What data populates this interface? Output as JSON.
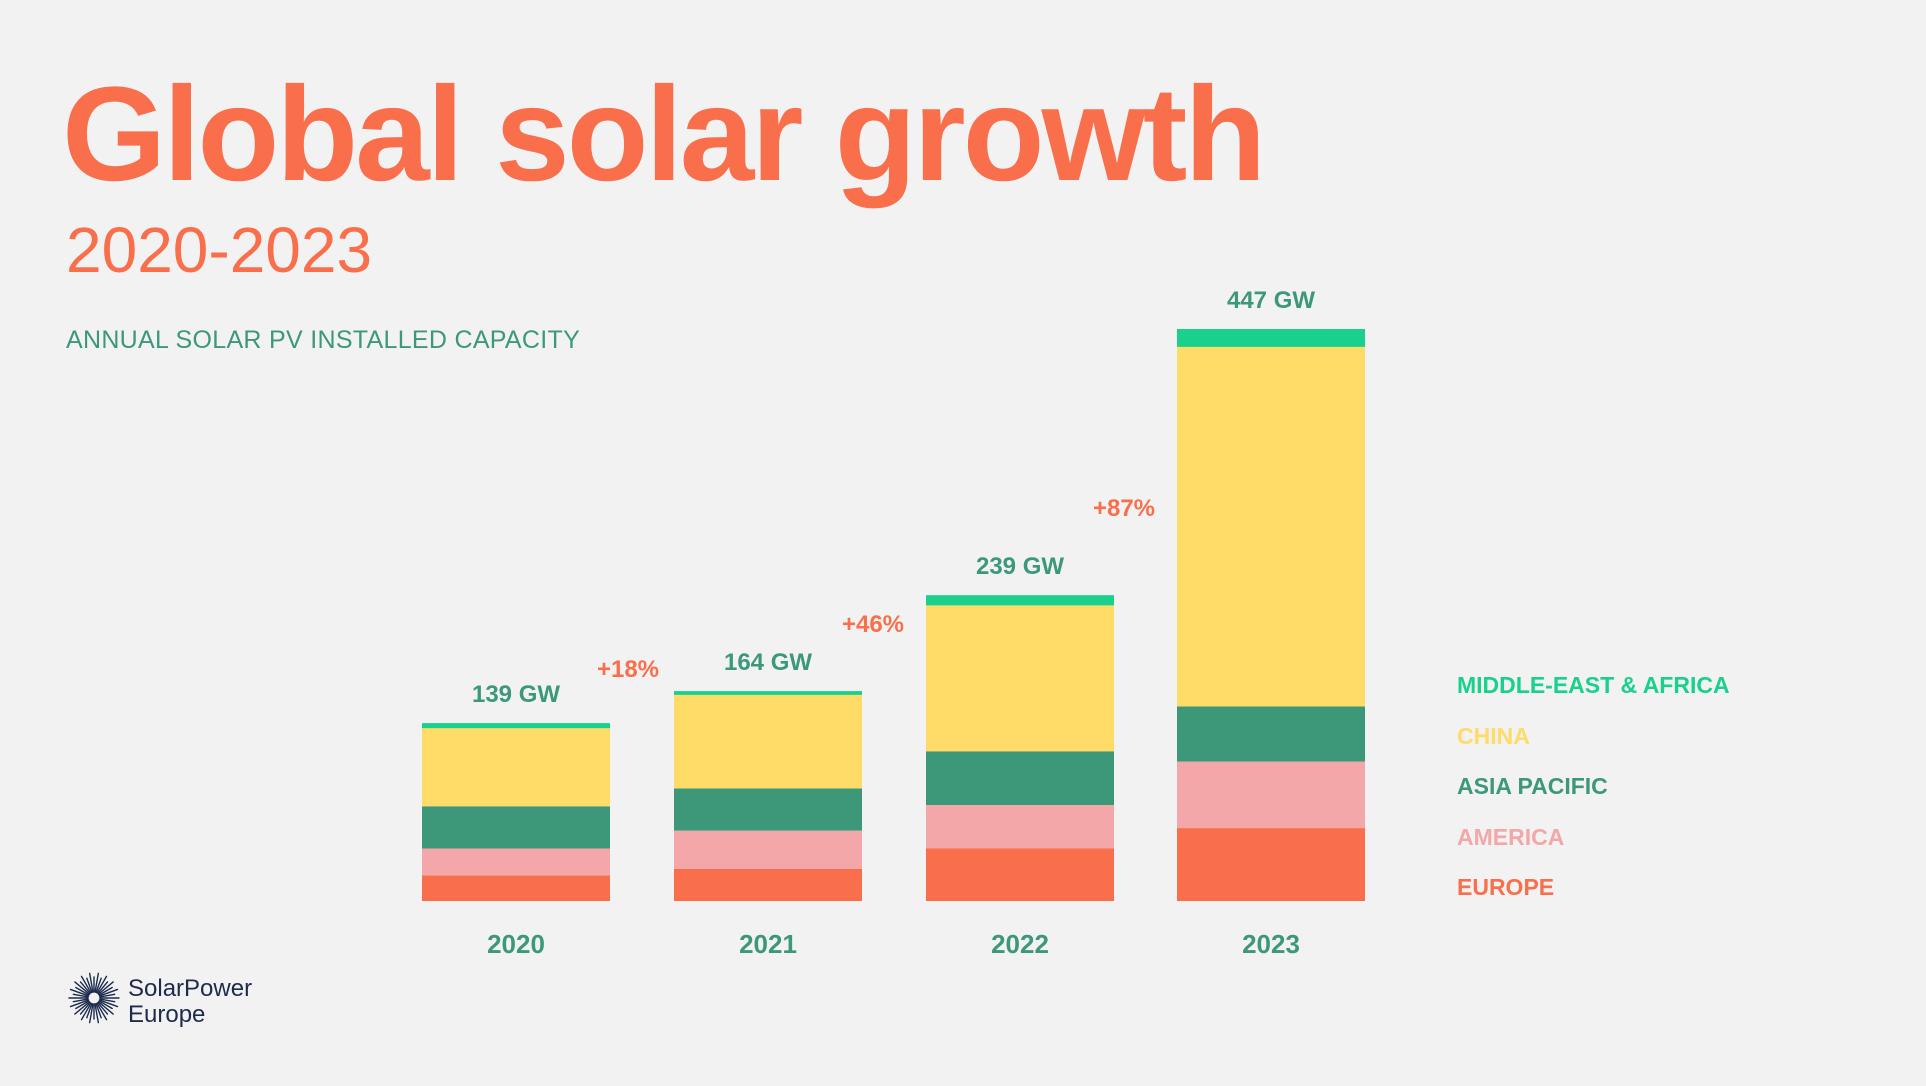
{
  "header": {
    "title": "Global solar growth",
    "subtitle": "2020-2023",
    "caption": "ANNUAL SOLAR PV INSTALLED CAPACITY"
  },
  "logo": {
    "line1": "SolarPower",
    "line2": "Europe",
    "icon": "sunburst-icon"
  },
  "colors": {
    "title": "#f96e4b",
    "accent_green": "#3c9879",
    "growth_label": "#f96e4b",
    "background": "#f2f2f2",
    "logo_text": "#1d2b4c"
  },
  "chart_data": {
    "type": "bar",
    "stacked": true,
    "title": "Global solar growth",
    "subtitle": "2020-2023",
    "categories": [
      "2020",
      "2021",
      "2022",
      "2023"
    ],
    "series": [
      {
        "name": "EUROPE",
        "color": "#f96e4b",
        "values": [
          20,
          25,
          41,
          57
        ]
      },
      {
        "name": "AMERICA",
        "color": "#f3a7a8",
        "values": [
          21,
          30,
          34,
          52
        ]
      },
      {
        "name": "ASIA PACIFIC",
        "color": "#3c9879",
        "values": [
          33,
          33,
          42,
          43
        ]
      },
      {
        "name": "CHINA",
        "color": "#ffdb67",
        "values": [
          61,
          73,
          114,
          281
        ]
      },
      {
        "name": "MIDDLE-EAST & AFRICA",
        "color": "#19d08c",
        "values": [
          4,
          3,
          8,
          14
        ]
      }
    ],
    "totals": [
      "139 GW",
      "164 GW",
      "239 GW",
      "447 GW"
    ],
    "total_values": [
      139,
      164,
      239,
      447
    ],
    "growth_labels": [
      "+18%",
      "+46%",
      "+87%"
    ],
    "legend": [
      "MIDDLE-EAST & AFRICA",
      "CHINA",
      "ASIA PACIFIC",
      "AMERICA",
      "EUROPE"
    ],
    "legend_placement": "right",
    "unit": "GW",
    "ylim": [
      0,
      447
    ],
    "grid": false,
    "xlabel": "",
    "ylabel": ""
  }
}
